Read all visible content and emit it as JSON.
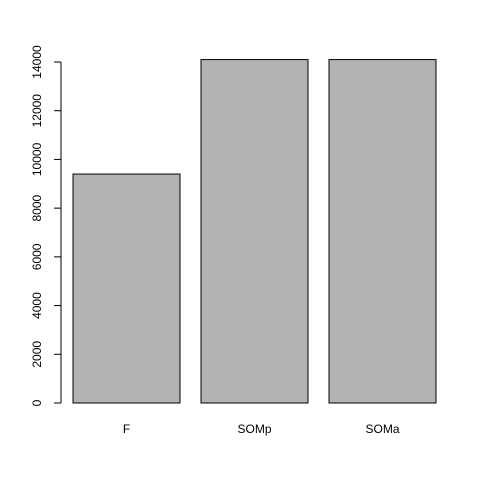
{
  "chart_data": {
    "type": "bar",
    "categories": [
      "F",
      "SOMp",
      "SOMa"
    ],
    "values": [
      9400,
      14100,
      14100
    ],
    "title": "",
    "xlabel": "",
    "ylabel": "",
    "ylim": [
      0,
      14000
    ],
    "yticks": [
      0,
      2000,
      4000,
      6000,
      8000,
      10000,
      12000,
      14000
    ],
    "bar_color": "#b3b3b3",
    "grid": false
  }
}
